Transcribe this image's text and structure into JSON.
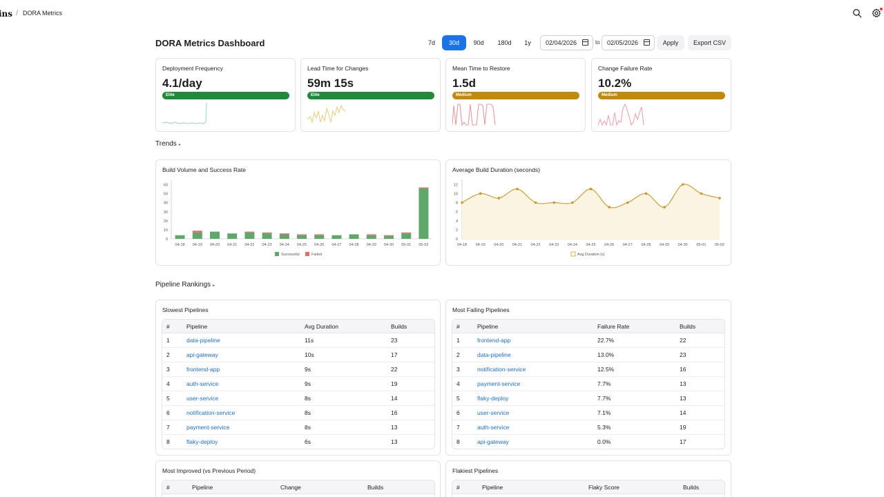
{
  "topbar": {
    "brand": "ins",
    "separator": "/",
    "breadcrumb": "DORA Metrics",
    "search_icon": "search-icon",
    "settings_icon": "gear-icon"
  },
  "header": {
    "title": "DORA Metrics Dashboard",
    "ranges": [
      "7d",
      "30d",
      "90d",
      "180d",
      "1y"
    ],
    "active_range": "30d",
    "date_from": "02/04/2026",
    "to_label": "to",
    "date_to": "02/05/2026",
    "apply_label": "Apply",
    "export_label": "Export CSV",
    "accent": "#1a73e8"
  },
  "metrics": [
    {
      "label": "Deployment Frequency",
      "value": "4.1/day",
      "level": "Elite",
      "color": "#1e8a3a",
      "spark_color": "#9fd3c7"
    },
    {
      "label": "Lead Time for Changes",
      "value": "59m 15s",
      "level": "Elite",
      "color": "#1e8a3a",
      "spark_color": "#e6cf8a"
    },
    {
      "label": "Mean Time to Restore",
      "value": "1.5d",
      "level": "Medium",
      "color": "#c28a0a",
      "spark_color": "#e39aa0"
    },
    {
      "label": "Change Failure Rate",
      "value": "10.2%",
      "level": "Medium",
      "color": "#c28a0a",
      "spark_color": "#eba5ac"
    }
  ],
  "sections": {
    "trends": "Trends",
    "rankings": "Pipeline Rankings",
    "chevron": "▸"
  },
  "chart_data": [
    {
      "type": "bar",
      "title": "Build Volume and Success Rate",
      "categories": [
        "04-18",
        "04-19",
        "04-20",
        "04-21",
        "04-22",
        "04-23",
        "04-24",
        "04-25",
        "04-26",
        "04-27",
        "04-28",
        "04-29",
        "04-30",
        "05-01",
        "05-02"
      ],
      "series": [
        {
          "name": "Successful",
          "color": "#5fa86b",
          "values": [
            4,
            7,
            8,
            6,
            7,
            6,
            5,
            4,
            4,
            4,
            5,
            4,
            3,
            6,
            56
          ]
        },
        {
          "name": "Failed",
          "color": "#e06c6c",
          "values": [
            0,
            2,
            0,
            0,
            1,
            1,
            1,
            1,
            1,
            0,
            0,
            1,
            1,
            1,
            1
          ]
        }
      ],
      "yticks": [
        0,
        10,
        20,
        30,
        40,
        50,
        60
      ],
      "ylim": [
        0,
        62
      ],
      "stacked": true,
      "legend": "bottom"
    },
    {
      "type": "area",
      "title": "Average Build Duration (seconds)",
      "categories": [
        "04-18",
        "04-19",
        "04-20",
        "04-21",
        "04-22",
        "04-23",
        "04-24",
        "04-25",
        "04-26",
        "04-27",
        "04-28",
        "04-29",
        "04-30",
        "05-01",
        "05-02"
      ],
      "series": [
        {
          "name": "Avg Duration (s)",
          "color": "#c9982a",
          "values": [
            8,
            10,
            9,
            11,
            8,
            8,
            8,
            11,
            7,
            8,
            10,
            7,
            12,
            10,
            9
          ]
        }
      ],
      "yticks": [
        0,
        2,
        4,
        6,
        8,
        10,
        12
      ],
      "ylim": [
        0,
        12.5
      ],
      "legend": "bottom"
    }
  ],
  "slowest": {
    "title": "Slowest Pipelines",
    "columns": [
      "#",
      "Pipeline",
      "Avg Duration",
      "Builds"
    ],
    "rows": [
      [
        "1",
        "data-pipeline",
        "11s",
        "23"
      ],
      [
        "2",
        "api-gateway",
        "10s",
        "17"
      ],
      [
        "3",
        "frontend-app",
        "9s",
        "22"
      ],
      [
        "4",
        "auth-service",
        "9s",
        "19"
      ],
      [
        "5",
        "user-service",
        "8s",
        "14"
      ],
      [
        "6",
        "notification-service",
        "8s",
        "16"
      ],
      [
        "7",
        "payment-service",
        "8s",
        "13"
      ],
      [
        "8",
        "flaky-deploy",
        "6s",
        "13"
      ]
    ]
  },
  "failing": {
    "title": "Most Failing Pipelines",
    "columns": [
      "#",
      "Pipeline",
      "Failure Rate",
      "Builds"
    ],
    "rows": [
      [
        "1",
        "frontend-app",
        "22.7%",
        "22"
      ],
      [
        "2",
        "data-pipeline",
        "13.0%",
        "23"
      ],
      [
        "3",
        "notification-service",
        "12.5%",
        "16"
      ],
      [
        "4",
        "payment-service",
        "7.7%",
        "13"
      ],
      [
        "5",
        "flaky-deploy",
        "7.7%",
        "13"
      ],
      [
        "6",
        "user-service",
        "7.1%",
        "14"
      ],
      [
        "7",
        "auth-service",
        "5.3%",
        "19"
      ],
      [
        "8",
        "api-gateway",
        "0.0%",
        "17"
      ]
    ]
  },
  "improved": {
    "title": "Most Improved (vs Previous Period)",
    "columns": [
      "#",
      "Pipeline",
      "Change",
      "Builds"
    ]
  },
  "flakiest": {
    "title": "Flakiest Pipelines",
    "columns": [
      "#",
      "Pipeline",
      "Flaky Score",
      "Builds"
    ]
  }
}
